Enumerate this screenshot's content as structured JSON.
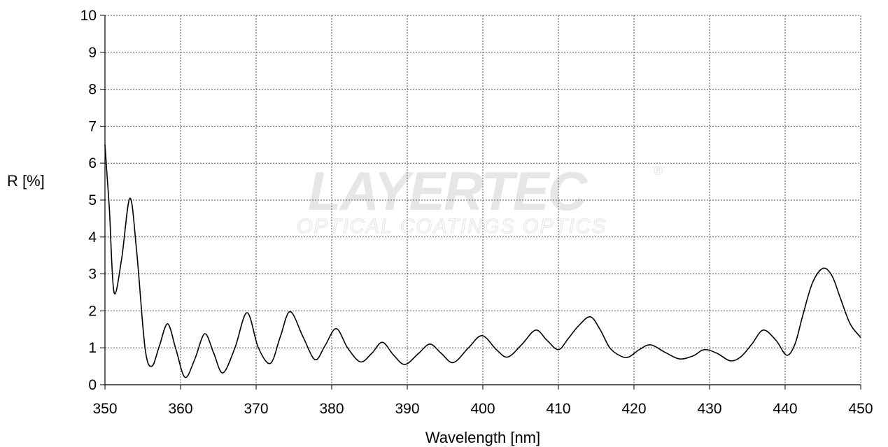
{
  "chart_data": {
    "type": "line",
    "title": "",
    "xlabel": "Wavelength [nm]",
    "ylabel": "R [%]",
    "xlim": [
      350,
      450
    ],
    "ylim": [
      0,
      10
    ],
    "xticks": [
      350,
      360,
      370,
      380,
      390,
      400,
      410,
      420,
      430,
      440,
      450
    ],
    "yticks": [
      0,
      1,
      2,
      3,
      4,
      5,
      6,
      7,
      8,
      9,
      10
    ],
    "grid": true,
    "line_color": "#000000",
    "series": [
      {
        "x": [
          350.0,
          350.3,
          350.6,
          351.2,
          352.2,
          353.3,
          354.2,
          355.3,
          356.2,
          357.2,
          358.3,
          359.4,
          360.6,
          361.9,
          363.2,
          364.4,
          365.6,
          367.2,
          368.8,
          370.3,
          371.9,
          373.2,
          374.5,
          376.2,
          377.8,
          379.1,
          380.6,
          382.1,
          383.8,
          385.3,
          386.7,
          388.2,
          389.7,
          391.5,
          393.0,
          394.5,
          396.1,
          398.1,
          399.9,
          401.8,
          403.3,
          405.2,
          407.0,
          408.5,
          410.0,
          411.3,
          412.6,
          414.2,
          415.5,
          416.8,
          418.2,
          419.3,
          420.7,
          422.2,
          424.1,
          426.0,
          427.8,
          429.3,
          431.0,
          432.7,
          434.1,
          435.6,
          437.1,
          438.8,
          440.2,
          441.3,
          442.3,
          443.6,
          445.0,
          446.2,
          447.3,
          448.6,
          450.0
        ],
        "y": [
          6.5,
          5.6,
          4.7,
          2.5,
          3.4,
          5.05,
          3.6,
          1.0,
          0.5,
          1.05,
          1.65,
          0.95,
          0.2,
          0.7,
          1.38,
          0.85,
          0.32,
          1.0,
          1.95,
          1.0,
          0.58,
          1.3,
          1.98,
          1.3,
          0.68,
          1.05,
          1.52,
          1.0,
          0.62,
          0.85,
          1.15,
          0.8,
          0.55,
          0.85,
          1.1,
          0.85,
          0.6,
          1.0,
          1.33,
          0.95,
          0.75,
          1.1,
          1.48,
          1.2,
          0.95,
          1.25,
          1.58,
          1.84,
          1.5,
          1.0,
          0.78,
          0.75,
          0.95,
          1.08,
          0.88,
          0.7,
          0.78,
          0.95,
          0.85,
          0.65,
          0.75,
          1.1,
          1.48,
          1.2,
          0.8,
          1.1,
          1.85,
          2.75,
          3.15,
          2.95,
          2.35,
          1.65,
          1.28
        ]
      }
    ]
  },
  "watermark": {
    "brand": "LAYERTEC",
    "tagline": "OPTICAL COATINGS  OPTICS",
    "registered_mark": "®"
  }
}
